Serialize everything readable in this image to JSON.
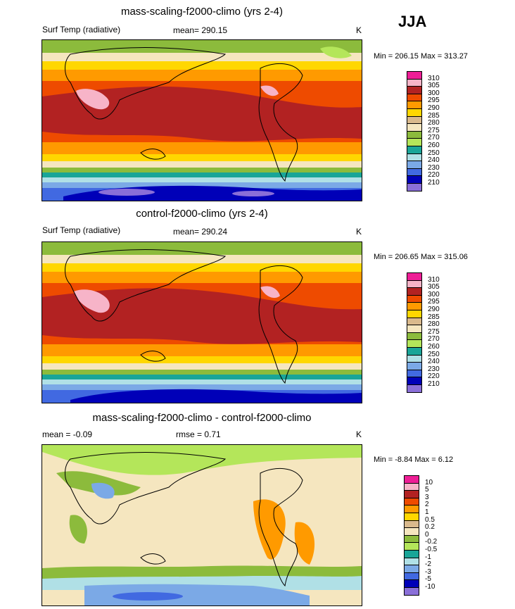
{
  "season": "JJA",
  "panels": [
    {
      "id": "p1",
      "title": "mass-scaling-f2000-climo (yrs 2-4)",
      "left_label": "Surf Temp (radiative)",
      "center_label": "mean= 290.15",
      "units": "K",
      "minmax": "Min = 206.15 Max = 313.27",
      "kind": "abs"
    },
    {
      "id": "p2",
      "title": "control-f2000-climo (yrs 2-4)",
      "left_label": "Surf Temp (radiative)",
      "center_label": "mean= 290.24",
      "units": "K",
      "minmax": "Min = 206.65 Max = 315.06",
      "kind": "abs"
    },
    {
      "id": "p3",
      "title": "mass-scaling-f2000-climo - control-f2000-climo",
      "left_label": "mean =  -0.09",
      "center_label": "rmse =   0.71",
      "units": "K",
      "minmax": "Min =  -8.84 Max =   6.12",
      "kind": "diff"
    }
  ],
  "chart_data": [
    {
      "type": "heatmap",
      "title": "mass-scaling-f2000-climo (yrs 2-4)",
      "variable": "Surf Temp (radiative)",
      "units": "K",
      "mean": 290.15,
      "min": 206.15,
      "max": 313.27,
      "colorbar_levels": [
        310,
        305,
        300,
        295,
        290,
        285,
        280,
        275,
        270,
        260,
        250,
        240,
        230,
        220,
        210
      ],
      "colorbar_colors": [
        "#ee1e96",
        "#f7b4c8",
        "#b22222",
        "#ee4b00",
        "#ff9a00",
        "#ffd700",
        "#d9b98c",
        "#f5e6bf",
        "#8cbb3c",
        "#b4e65a",
        "#19a598",
        "#b0e0e6",
        "#7ba9e6",
        "#4169e1",
        "#0000b8",
        "#8a6fd8"
      ]
    },
    {
      "type": "heatmap",
      "title": "control-f2000-climo (yrs 2-4)",
      "variable": "Surf Temp (radiative)",
      "units": "K",
      "mean": 290.24,
      "min": 206.65,
      "max": 315.06,
      "colorbar_levels": [
        310,
        305,
        300,
        295,
        290,
        285,
        280,
        275,
        270,
        260,
        250,
        240,
        230,
        220,
        210
      ],
      "colorbar_colors": [
        "#ee1e96",
        "#f7b4c8",
        "#b22222",
        "#ee4b00",
        "#ff9a00",
        "#ffd700",
        "#d9b98c",
        "#f5e6bf",
        "#8cbb3c",
        "#b4e65a",
        "#19a598",
        "#b0e0e6",
        "#7ba9e6",
        "#4169e1",
        "#0000b8",
        "#8a6fd8"
      ]
    },
    {
      "type": "heatmap",
      "title": "mass-scaling-f2000-climo - control-f2000-climo",
      "units": "K",
      "mean": -0.09,
      "rmse": 0.71,
      "min": -8.84,
      "max": 6.12,
      "colorbar_levels": [
        "10",
        "5",
        "3",
        "2",
        "1",
        "0.5",
        "0.2",
        "0",
        "-0.2",
        "-0.5",
        "-1",
        "-2",
        "-3",
        "-5",
        "-10"
      ],
      "colorbar_colors": [
        "#ee1e96",
        "#f7b4c8",
        "#b22222",
        "#ee4b00",
        "#ff9a00",
        "#ffd700",
        "#d9b98c",
        "#f5e6bf",
        "#8cbb3c",
        "#b4e65a",
        "#19a598",
        "#b0e0e6",
        "#7ba9e6",
        "#4169e1",
        "#0000b8",
        "#8a6fd8"
      ]
    }
  ]
}
